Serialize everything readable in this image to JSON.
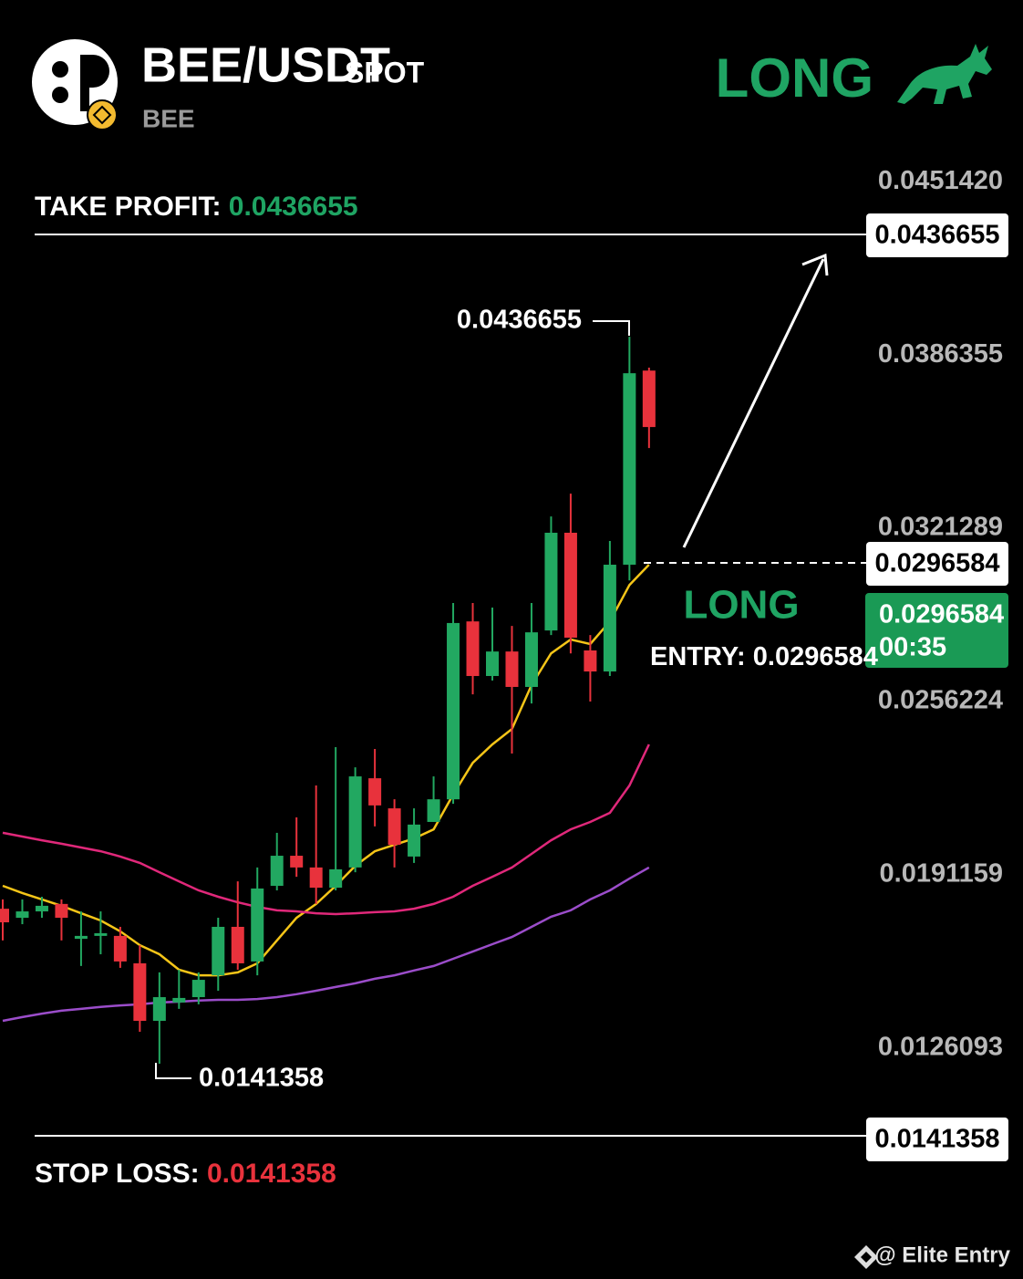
{
  "header": {
    "pair": "BEE/USDT",
    "market": "SPOT",
    "base": "BEE",
    "signal": "LONG"
  },
  "take_profit": {
    "label": "TAKE PROFIT:",
    "value": 0.0436655
  },
  "stop_loss": {
    "label": "STOP LOSS:",
    "value": 0.0141358
  },
  "entry": {
    "signal": "LONG",
    "label": "ENTRY:",
    "value": 0.0296584,
    "countdown": "00:35"
  },
  "annotations": {
    "high": 0.0436655,
    "low": 0.0141358
  },
  "watermark": "@ Elite Entry",
  "chart_data": {
    "type": "candlestick",
    "up_color": "#22a861",
    "down_color": "#e8323c",
    "open": [
      0.01784,
      0.0175,
      0.01774,
      0.01802,
      0.01671,
      0.01682,
      0.01682,
      0.01579,
      0.01363,
      0.01432,
      0.01452,
      0.01534,
      0.01716,
      0.01586,
      0.0187,
      0.01983,
      0.01939,
      0.01863,
      0.01939,
      0.02274,
      0.02161,
      0.0198,
      0.0211,
      0.02195,
      0.02863,
      0.02658,
      0.0275,
      0.02617,
      0.02829,
      0.03196,
      0.02754,
      0.02675,
      0.03076,
      0.03805
    ],
    "high": [
      0.01819,
      0.01819,
      0.01829,
      0.01819,
      0.01774,
      0.01774,
      0.01716,
      0.01647,
      0.01545,
      0.01555,
      0.01545,
      0.0175,
      0.01887,
      0.01939,
      0.02069,
      0.02127,
      0.02247,
      0.02391,
      0.02315,
      0.02384,
      0.02195,
      0.02161,
      0.02281,
      0.02932,
      0.02932,
      0.02915,
      0.02846,
      0.02932,
      0.03257,
      0.03343,
      0.02812,
      0.03165,
      0.03932,
      0.03816
    ],
    "low": [
      0.01665,
      0.01726,
      0.0175,
      0.01665,
      0.01569,
      0.01613,
      0.01562,
      0.01322,
      0.01202,
      0.01408,
      0.01425,
      0.01476,
      0.01555,
      0.01534,
      0.01853,
      0.01904,
      0.01802,
      0.01853,
      0.01921,
      0.02093,
      0.01939,
      0.01956,
      0.0211,
      0.02178,
      0.02589,
      0.02641,
      0.02367,
      0.02555,
      0.02812,
      0.02743,
      0.02562,
      0.02658,
      0.03017,
      0.03514
    ],
    "close": [
      0.01733,
      0.01774,
      0.01795,
      0.0175,
      0.01682,
      0.01692,
      0.01586,
      0.01363,
      0.01452,
      0.01449,
      0.01517,
      0.01716,
      0.01579,
      0.0186,
      0.01983,
      0.01939,
      0.01863,
      0.01932,
      0.02281,
      0.02172,
      0.02024,
      0.021,
      0.02195,
      0.02857,
      0.02658,
      0.0275,
      0.02617,
      0.02822,
      0.03196,
      0.02802,
      0.02675,
      0.03076,
      0.03795,
      0.03593
    ],
    "moving_averages": [
      {
        "color": "#f5c518",
        "values": [
          0.0187,
          0.01843,
          0.01819,
          0.01795,
          0.01767,
          0.0174,
          0.01699,
          0.01647,
          0.01613,
          0.01555,
          0.01534,
          0.01534,
          0.01545,
          0.01579,
          0.01665,
          0.0175,
          0.01802,
          0.0187,
          0.01945,
          0.02,
          0.02024,
          0.02048,
          0.02082,
          0.02213,
          0.02332,
          0.02401,
          0.02459,
          0.02624,
          0.02743,
          0.02795,
          0.02778,
          0.02863,
          0.03,
          0.03076
        ]
      },
      {
        "color": "#e0287a",
        "values": [
          0.02069,
          0.02055,
          0.02041,
          0.02028,
          0.02014,
          0.02,
          0.0198,
          0.01956,
          0.01921,
          0.01887,
          0.01853,
          0.01829,
          0.01808,
          0.01791,
          0.01778,
          0.01774,
          0.01767,
          0.01764,
          0.01767,
          0.01771,
          0.01774,
          0.01784,
          0.01802,
          0.01829,
          0.0187,
          0.01904,
          0.01939,
          0.0199,
          0.02041,
          0.02082,
          0.0211,
          0.02144,
          0.02247,
          0.02401
        ]
      },
      {
        "color": "#9b4dca",
        "values": [
          0.01363,
          0.01377,
          0.0139,
          0.01401,
          0.01408,
          0.01415,
          0.01421,
          0.01425,
          0.01432,
          0.01435,
          0.01439,
          0.01442,
          0.01442,
          0.01445,
          0.01452,
          0.01463,
          0.01476,
          0.0149,
          0.01504,
          0.01521,
          0.01534,
          0.01552,
          0.01569,
          0.01596,
          0.01623,
          0.01651,
          0.01678,
          0.01716,
          0.01754,
          0.01778,
          0.01819,
          0.01853,
          0.01897,
          0.01939
        ]
      }
    ],
    "ylim": [
      0.0088,
      0.0458
    ],
    "yticks": [
      {
        "value": 0.045142,
        "label": "0.0451420"
      },
      0.0386355,
      0.0321289,
      0.0256224,
      0.0191159,
      0.0126093
    ]
  }
}
